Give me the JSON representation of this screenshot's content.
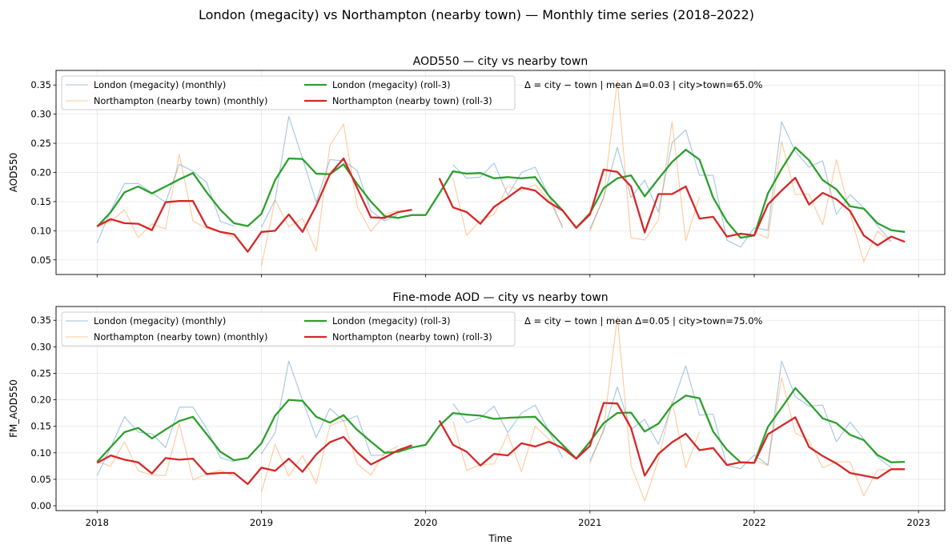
{
  "figure_title": "London (megacity) vs Northampton (nearby town) — Monthly time series (2018–2022)",
  "colors": {
    "london_monthly": "#1f77b4",
    "northampton_monthly": "#ff7f0e",
    "london_roll": "#2ca02c",
    "northampton_roll": "#d62728"
  },
  "chart_data": [
    {
      "type": "line",
      "title": "AOD550 — city vs nearby town",
      "xlabel": "",
      "ylabel": "AOD550",
      "annotation": "Δ = city − town | mean Δ=0.03 | city>town=65.0%",
      "xlim": [
        2017.75,
        2023.16
      ],
      "ylim": [
        0.025,
        0.375
      ],
      "yticks": [
        "0.05",
        "0.10",
        "0.15",
        "0.20",
        "0.25",
        "0.30",
        "0.35"
      ],
      "xticks": [
        "2018",
        "2019",
        "2020",
        "2021",
        "2022",
        "2023"
      ],
      "grid": true,
      "legend": "upper-left, 2 columns",
      "x": [
        "2018-01",
        "2018-02",
        "2018-03",
        "2018-04",
        "2018-05",
        "2018-06",
        "2018-07",
        "2018-08",
        "2018-09",
        "2018-10",
        "2018-11",
        "2018-12",
        "2019-01",
        "2019-02",
        "2019-03",
        "2019-04",
        "2019-05",
        "2019-06",
        "2019-07",
        "2019-08",
        "2019-09",
        "2019-10",
        "2019-11",
        "2019-12",
        "2020-01",
        "2020-02",
        "2020-03",
        "2020-04",
        "2020-05",
        "2020-06",
        "2020-07",
        "2020-08",
        "2020-09",
        "2020-10",
        "2020-11",
        "2020-12",
        "2021-01",
        "2021-02",
        "2021-03",
        "2021-04",
        "2021-05",
        "2021-06",
        "2021-07",
        "2021-08",
        "2021-09",
        "2021-10",
        "2021-11",
        "2021-12",
        "2022-01",
        "2022-02",
        "2022-03",
        "2022-04",
        "2022-05",
        "2022-06",
        "2022-07",
        "2022-08",
        "2022-09",
        "2022-10",
        "2022-11",
        "2022-12"
      ],
      "series": [
        {
          "name": "London (megacity) (monthly)",
          "key": "london_monthly",
          "values": [
            0.079,
            0.135,
            0.181,
            0.181,
            0.165,
            0.149,
            0.214,
            0.202,
            0.183,
            0.116,
            0.108,
            null,
            0.106,
            0.153,
            0.296,
            0.224,
            0.149,
            0.222,
            0.22,
            0.203,
            0.134,
            0.117,
            0.128,
            null,
            null,
            null,
            0.213,
            0.19,
            0.192,
            0.216,
            0.161,
            0.2,
            0.209,
            0.16,
            0.105,
            null,
            0.103,
            0.157,
            0.243,
            0.157,
            0.187,
            0.132,
            0.251,
            0.273,
            0.195,
            0.195,
            0.084,
            0.072,
            0.105,
            0.101,
            0.287,
            0.236,
            0.209,
            0.22,
            0.128,
            0.162,
            0.139,
            0.109,
            0.082,
            null
          ]
        },
        {
          "name": "Northampton (nearby town) (monthly)",
          "key": "northampton_monthly",
          "values": [
            0.107,
            0.116,
            0.136,
            0.088,
            0.112,
            0.103,
            0.231,
            0.117,
            0.104,
            0.098,
            0.088,
            null,
            0.04,
            0.153,
            0.107,
            0.121,
            0.065,
            0.246,
            0.283,
            0.141,
            0.099,
            0.128,
            0.135,
            null,
            null,
            null,
            0.19,
            0.092,
            0.118,
            0.128,
            0.177,
            0.169,
            0.179,
            0.153,
            0.108,
            null,
            0.099,
            0.157,
            0.358,
            0.088,
            0.084,
            0.118,
            0.287,
            0.083,
            0.158,
            null,
            null,
            null,
            0.098,
            0.087,
            0.253,
            0.162,
            0.163,
            0.11,
            0.222,
            0.13,
            0.047,
            0.099,
            0.081,
            null
          ]
        },
        {
          "name": "London (megacity) (roll-3)",
          "key": "london_roll",
          "values": [
            0.107,
            0.132,
            0.166,
            0.176,
            0.164,
            0.176,
            0.188,
            0.199,
            0.166,
            0.136,
            0.113,
            0.108,
            0.129,
            0.187,
            0.224,
            0.223,
            0.198,
            0.197,
            0.214,
            0.18,
            0.15,
            0.125,
            0.122,
            0.127,
            0.127,
            0.164,
            0.202,
            0.198,
            0.199,
            0.19,
            0.192,
            0.19,
            0.192,
            0.16,
            0.135,
            0.105,
            0.13,
            0.173,
            0.19,
            0.195,
            0.159,
            0.189,
            0.218,
            0.239,
            0.222,
            0.157,
            0.116,
            0.088,
            0.092,
            0.164,
            0.206,
            0.243,
            0.221,
            0.187,
            0.171,
            0.142,
            0.138,
            0.113,
            0.101,
            0.098
          ]
        },
        {
          "name": "Northampton (nearby town) (roll-3)",
          "key": "northampton_roll",
          "values": [
            0.108,
            0.12,
            0.113,
            0.112,
            0.101,
            0.149,
            0.151,
            0.151,
            0.107,
            0.098,
            0.094,
            0.064,
            0.098,
            0.1,
            0.128,
            0.098,
            0.143,
            0.197,
            0.224,
            0.173,
            0.123,
            0.122,
            0.132,
            0.136,
            null,
            0.19,
            0.14,
            0.132,
            0.112,
            0.141,
            0.157,
            0.174,
            0.169,
            0.149,
            0.135,
            0.105,
            0.128,
            0.205,
            0.201,
            0.176,
            0.097,
            0.163,
            0.163,
            0.176,
            0.121,
            0.124,
            0.09,
            0.095,
            0.092,
            0.145,
            0.169,
            0.191,
            0.145,
            0.165,
            0.154,
            0.134,
            0.092,
            0.075,
            0.09,
            0.081
          ]
        }
      ]
    },
    {
      "type": "line",
      "title": "Fine-mode AOD — city vs nearby town",
      "xlabel": "Time",
      "ylabel": "FM_AOD550",
      "annotation": "Δ = city − town | mean Δ=0.05 | city>town=75.0%",
      "xlim": [
        2017.75,
        2023.16
      ],
      "ylim": [
        -0.009,
        0.376
      ],
      "yticks": [
        "0.00",
        "0.05",
        "0.10",
        "0.15",
        "0.20",
        "0.25",
        "0.30",
        "0.35"
      ],
      "xticks": [
        "2018",
        "2019",
        "2020",
        "2021",
        "2022",
        "2023"
      ],
      "grid": true,
      "legend": "upper-left, 2 columns",
      "x": [
        "2018-01",
        "2018-02",
        "2018-03",
        "2018-04",
        "2018-05",
        "2018-06",
        "2018-07",
        "2018-08",
        "2018-09",
        "2018-10",
        "2018-11",
        "2018-12",
        "2019-01",
        "2019-02",
        "2019-03",
        "2019-04",
        "2019-05",
        "2019-06",
        "2019-07",
        "2019-08",
        "2019-09",
        "2019-10",
        "2019-11",
        "2019-12",
        "2020-01",
        "2020-02",
        "2020-03",
        "2020-04",
        "2020-05",
        "2020-06",
        "2020-07",
        "2020-08",
        "2020-09",
        "2020-10",
        "2020-11",
        "2020-12",
        "2021-01",
        "2021-02",
        "2021-03",
        "2021-04",
        "2021-05",
        "2021-06",
        "2021-07",
        "2021-08",
        "2021-09",
        "2021-10",
        "2021-11",
        "2021-12",
        "2022-01",
        "2022-02",
        "2022-03",
        "2022-04",
        "2022-05",
        "2022-06",
        "2022-07",
        "2022-08",
        "2022-09",
        "2022-10",
        "2022-11",
        "2022-12"
      ],
      "series": [
        {
          "name": "London (megacity) (monthly)",
          "key": "london_monthly",
          "values": [
            0.057,
            0.111,
            0.168,
            0.139,
            0.136,
            0.11,
            0.186,
            0.186,
            0.146,
            0.091,
            0.083,
            null,
            0.098,
            0.138,
            0.273,
            0.199,
            0.129,
            0.184,
            0.16,
            0.17,
            0.095,
            0.096,
            null,
            null,
            null,
            null,
            0.193,
            0.157,
            0.166,
            0.188,
            0.138,
            0.175,
            0.19,
            0.141,
            0.091,
            null,
            0.085,
            0.141,
            0.224,
            0.144,
            0.163,
            0.116,
            0.19,
            0.264,
            0.171,
            0.173,
            0.076,
            0.07,
            0.096,
            0.077,
            0.273,
            0.206,
            0.188,
            0.19,
            0.121,
            0.158,
            0.126,
            0.092,
            0.072,
            null
          ]
        },
        {
          "name": "Northampton (nearby town) (monthly)",
          "key": "northampton_monthly",
          "values": [
            0.083,
            0.075,
            0.121,
            0.066,
            0.058,
            0.057,
            0.155,
            0.049,
            0.06,
            0.067,
            0.056,
            null,
            0.026,
            0.116,
            0.056,
            0.095,
            0.042,
            0.151,
            0.161,
            0.079,
            0.058,
            0.1,
            0.113,
            null,
            null,
            null,
            0.16,
            0.067,
            0.078,
            0.079,
            0.136,
            0.064,
            0.15,
            0.126,
            0.105,
            null,
            0.08,
            0.144,
            0.357,
            0.076,
            0.009,
            0.087,
            0.197,
            0.072,
            0.14,
            null,
            null,
            null,
            0.087,
            0.076,
            0.242,
            0.137,
            0.124,
            0.072,
            0.083,
            0.083,
            0.019,
            0.068,
            0.068,
            null
          ]
        },
        {
          "name": "London (megacity) (roll-3)",
          "key": "london_roll",
          "values": [
            0.083,
            0.111,
            0.139,
            0.147,
            0.127,
            0.144,
            0.16,
            0.168,
            0.135,
            0.102,
            0.086,
            0.09,
            0.118,
            0.17,
            0.2,
            0.198,
            0.168,
            0.157,
            0.171,
            0.143,
            0.121,
            0.1,
            0.102,
            0.11,
            0.115,
            0.151,
            0.175,
            0.172,
            0.17,
            0.164,
            0.166,
            0.167,
            0.168,
            0.141,
            0.115,
            0.089,
            0.121,
            0.156,
            0.175,
            0.176,
            0.14,
            0.155,
            0.19,
            0.208,
            0.203,
            0.14,
            0.106,
            0.082,
            0.081,
            0.149,
            0.185,
            0.222,
            0.194,
            0.165,
            0.156,
            0.134,
            0.124,
            0.096,
            0.082,
            0.083
          ]
        },
        {
          "name": "Northampton (nearby town) (roll-3)",
          "key": "northampton_roll",
          "values": [
            0.081,
            0.095,
            0.087,
            0.082,
            0.061,
            0.09,
            0.087,
            0.089,
            0.06,
            0.062,
            0.062,
            0.041,
            0.072,
            0.066,
            0.089,
            0.064,
            0.097,
            0.12,
            0.13,
            0.101,
            0.078,
            0.091,
            0.105,
            0.114,
            null,
            0.161,
            0.115,
            0.102,
            0.076,
            0.098,
            0.095,
            0.118,
            0.112,
            0.121,
            0.109,
            0.089,
            0.113,
            0.194,
            0.193,
            0.147,
            0.057,
            0.098,
            0.12,
            0.136,
            0.105,
            0.109,
            0.077,
            0.082,
            0.081,
            0.135,
            0.151,
            0.167,
            0.111,
            0.094,
            0.08,
            0.062,
            0.057,
            0.052,
            0.069,
            0.069
          ]
        }
      ]
    }
  ]
}
